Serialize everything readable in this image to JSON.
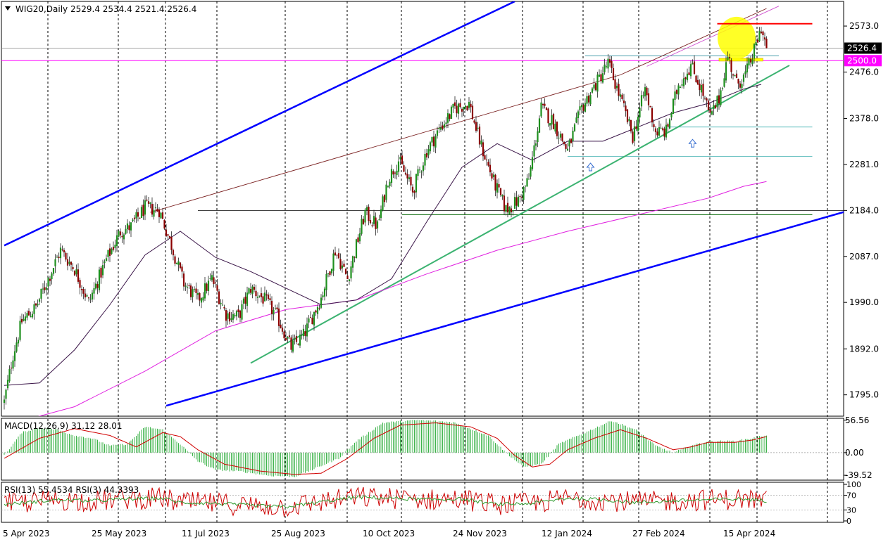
{
  "window": {
    "symbol_header": "WIG20,Daily  2529.4  2534.4  2521.4  2526.4",
    "macd_header": "MACD(12,26,9) 31.12 28.01",
    "rsi_header": "RSI(13) 55.4534  RSI(3) 44.3393"
  },
  "colors": {
    "bull": "#1e8f1e",
    "bear": "#8b0000",
    "ma_short": "#3a1548",
    "ma_long": "#e020e0",
    "channel": "#0000ff",
    "trend": "#3cb371",
    "resistance": "#ff0000",
    "highlight": "#ffff00",
    "price_tag": "#000000",
    "level_tag": "#ff00ff"
  },
  "chart_data": [
    {
      "type": "candlestick",
      "panel": "price",
      "ylim": [
        1750,
        2625
      ],
      "y_ticks": [
        2573.0,
        2476.0,
        2378.0,
        2281.0,
        2184.0,
        2087.0,
        1990.0,
        1892.0,
        1795.0
      ],
      "x_ticks": [
        "5 Apr 2023",
        "25 May 2023",
        "11 Jul 2023",
        "25 Aug 2023",
        "10 Oct 2023",
        "24 Nov 2023",
        "12 Jan 2024",
        "27 Feb 2024",
        "15 Apr 2024"
      ],
      "last_price": "2526.4",
      "level_tag": "2500.0",
      "anchors": [
        [
          0,
          1780
        ],
        [
          5,
          1880
        ],
        [
          10,
          1950
        ],
        [
          18,
          1980
        ],
        [
          25,
          2040
        ],
        [
          32,
          2100
        ],
        [
          40,
          2060
        ],
        [
          48,
          1990
        ],
        [
          58,
          2080
        ],
        [
          66,
          2140
        ],
        [
          72,
          2150
        ],
        [
          80,
          2190
        ],
        [
          88,
          2185
        ],
        [
          95,
          2110
        ],
        [
          102,
          2030
        ],
        [
          110,
          1995
        ],
        [
          118,
          2040
        ],
        [
          126,
          1965
        ],
        [
          133,
          1960
        ],
        [
          140,
          2020
        ],
        [
          148,
          1995
        ],
        [
          155,
          1960
        ],
        [
          163,
          1895
        ],
        [
          170,
          1920
        ],
        [
          180,
          2000
        ],
        [
          188,
          2100
        ],
        [
          195,
          2040
        ],
        [
          205,
          2180
        ],
        [
          212,
          2150
        ],
        [
          218,
          2250
        ],
        [
          224,
          2290
        ],
        [
          232,
          2225
        ],
        [
          240,
          2310
        ],
        [
          248,
          2360
        ],
        [
          256,
          2400
        ],
        [
          264,
          2410
        ],
        [
          270,
          2330
        ],
        [
          278,
          2245
        ],
        [
          285,
          2185
        ],
        [
          292,
          2205
        ],
        [
          298,
          2250
        ],
        [
          305,
          2400
        ],
        [
          312,
          2370
        ],
        [
          320,
          2310
        ],
        [
          328,
          2400
        ],
        [
          336,
          2450
        ],
        [
          343,
          2495
        ],
        [
          350,
          2420
        ],
        [
          357,
          2340
        ],
        [
          364,
          2440
        ],
        [
          370,
          2350
        ],
        [
          376,
          2350
        ],
        [
          383,
          2450
        ],
        [
          390,
          2490
        ],
        [
          396,
          2440
        ],
        [
          401,
          2380
        ],
        [
          406,
          2420
        ],
        [
          411,
          2510
        ],
        [
          416,
          2450
        ],
        [
          421,
          2470
        ],
        [
          426,
          2520
        ],
        [
          430,
          2570
        ],
        [
          433,
          2526.4
        ]
      ],
      "series": [
        {
          "name": "close",
          "count": 434
        },
        {
          "name": "sma_50",
          "values": [
            [
              0,
              1815
            ],
            [
              20,
              1820
            ],
            [
              40,
              1890
            ],
            [
              60,
              1985
            ],
            [
              80,
              2090
            ],
            [
              100,
              2140
            ],
            [
              120,
              2085
            ],
            [
              140,
              2055
            ],
            [
              160,
              2020
            ],
            [
              180,
              1985
            ],
            [
              200,
              1995
            ],
            [
              220,
              2040
            ],
            [
              240,
              2160
            ],
            [
              260,
              2275
            ],
            [
              280,
              2325
            ],
            [
              300,
              2290
            ],
            [
              320,
              2330
            ],
            [
              340,
              2330
            ],
            [
              360,
              2360
            ],
            [
              380,
              2390
            ],
            [
              400,
              2410
            ],
            [
              420,
              2440
            ],
            [
              430,
              2450
            ]
          ]
        },
        {
          "name": "sma_200",
          "values": [
            [
              0,
              1730
            ],
            [
              40,
              1770
            ],
            [
              80,
              1845
            ],
            [
              120,
              1930
            ],
            [
              160,
              1975
            ],
            [
              200,
              1995
            ],
            [
              240,
              2050
            ],
            [
              280,
              2100
            ],
            [
              320,
              2140
            ],
            [
              360,
              2175
            ],
            [
              400,
              2210
            ],
            [
              420,
              2235
            ],
            [
              433,
              2245
            ]
          ]
        }
      ],
      "annotations": {
        "channel_upper": [
          [
            0,
            2110
          ],
          [
            290,
            2625
          ]
        ],
        "channel_lower": [
          [
            92,
            1772
          ],
          [
            480,
            2184
          ]
        ],
        "thin_upper": [
          [
            83,
            2180
          ],
          [
            350,
            2470
          ],
          [
            433,
            2610
          ]
        ],
        "thin_upper_pink": [
          [
            365,
            2488
          ],
          [
            440,
            2615
          ]
        ],
        "trend_support": [
          [
            140,
            1862
          ],
          [
            446,
            2490
          ]
        ],
        "hline_2500": 2500.0,
        "hline_2526": 2526.4,
        "hline_2184": 2184.0,
        "res_short": {
          "x": [
            405,
            459
          ],
          "y": 2578
        },
        "support_short": {
          "x": [
            330,
            440
          ],
          "y": 2510
        },
        "yellow_box": {
          "x": [
            406,
            431
          ],
          "y": 2502
        },
        "teal_levels": [
          {
            "x": [
              320,
              459
            ],
            "y": 2298
          },
          {
            "x": [
              377,
              459
            ],
            "y": 2360
          }
        ],
        "green_level": {
          "x": [
            226,
            459
          ],
          "y": 2175
        },
        "arrows": [
          {
            "x": 333,
            "y": 2275
          },
          {
            "x": 391,
            "y": 2325
          }
        ],
        "circle": {
          "x": 416,
          "y": 2548
        }
      }
    },
    {
      "type": "histogram+line",
      "panel": "macd",
      "ylim": [
        -48,
        60
      ],
      "y_ticks": [
        "56.56",
        "0.00",
        "-39.52"
      ],
      "histogram": [
        [
          0,
          -5
        ],
        [
          10,
          35
        ],
        [
          20,
          44
        ],
        [
          30,
          40
        ],
        [
          40,
          30
        ],
        [
          50,
          25
        ],
        [
          60,
          12
        ],
        [
          70,
          15
        ],
        [
          80,
          45
        ],
        [
          90,
          40
        ],
        [
          100,
          15
        ],
        [
          110,
          -15
        ],
        [
          120,
          -30
        ],
        [
          135,
          -33
        ],
        [
          150,
          -40
        ],
        [
          165,
          -42
        ],
        [
          175,
          -30
        ],
        [
          190,
          -10
        ],
        [
          200,
          20
        ],
        [
          215,
          52
        ],
        [
          235,
          57
        ],
        [
          255,
          53
        ],
        [
          275,
          30
        ],
        [
          285,
          0
        ],
        [
          295,
          -25
        ],
        [
          305,
          -20
        ],
        [
          315,
          15
        ],
        [
          330,
          35
        ],
        [
          345,
          56
        ],
        [
          360,
          38
        ],
        [
          370,
          12
        ],
        [
          380,
          0
        ],
        [
          390,
          12
        ],
        [
          400,
          20
        ],
        [
          415,
          20
        ],
        [
          425,
          25
        ],
        [
          433,
          31
        ]
      ],
      "signal": [
        [
          0,
          -10
        ],
        [
          20,
          25
        ],
        [
          40,
          42
        ],
        [
          60,
          30
        ],
        [
          75,
          10
        ],
        [
          90,
          35
        ],
        [
          100,
          28
        ],
        [
          110,
          5
        ],
        [
          125,
          -20
        ],
        [
          145,
          -32
        ],
        [
          165,
          -38
        ],
        [
          180,
          -36
        ],
        [
          195,
          -10
        ],
        [
          210,
          25
        ],
        [
          225,
          48
        ],
        [
          245,
          52
        ],
        [
          265,
          45
        ],
        [
          280,
          25
        ],
        [
          290,
          -5
        ],
        [
          300,
          -25
        ],
        [
          310,
          -20
        ],
        [
          320,
          5
        ],
        [
          335,
          25
        ],
        [
          350,
          40
        ],
        [
          365,
          25
        ],
        [
          380,
          5
        ],
        [
          390,
          10
        ],
        [
          400,
          18
        ],
        [
          415,
          18
        ],
        [
          425,
          22
        ],
        [
          433,
          28
        ]
      ]
    },
    {
      "type": "line",
      "panel": "rsi",
      "ylim": [
        0,
        100
      ],
      "y_ticks": [
        "100",
        "70",
        "30",
        "0"
      ],
      "rsi13_base": [
        [
          0,
          45
        ],
        [
          30,
          58
        ],
        [
          50,
          55
        ],
        [
          70,
          60
        ],
        [
          90,
          62
        ],
        [
          100,
          50
        ],
        [
          120,
          48
        ],
        [
          140,
          42
        ],
        [
          160,
          38
        ],
        [
          180,
          52
        ],
        [
          200,
          65
        ],
        [
          220,
          62
        ],
        [
          240,
          58
        ],
        [
          260,
          60
        ],
        [
          280,
          45
        ],
        [
          300,
          48
        ],
        [
          320,
          62
        ],
        [
          340,
          58
        ],
        [
          360,
          50
        ],
        [
          380,
          55
        ],
        [
          400,
          58
        ],
        [
          420,
          60
        ],
        [
          433,
          55
        ]
      ]
    }
  ]
}
